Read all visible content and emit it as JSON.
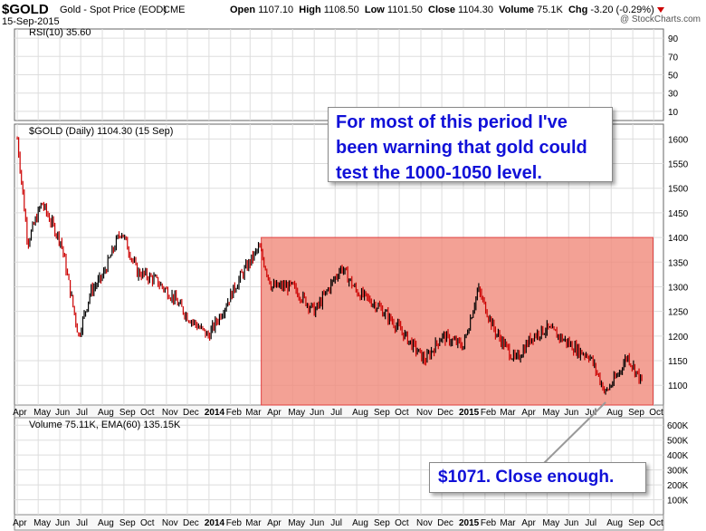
{
  "header": {
    "symbol": "$GOLD",
    "description": "Gold - Spot Price (EOD)",
    "exchange": "CME",
    "date": "15-Sep-2015",
    "brand": "@ StockCharts.com",
    "open_label": "Open",
    "open": "1107.10",
    "high_label": "High",
    "high": "1108.50",
    "low_label": "Low",
    "low": "1101.50",
    "close_label": "Close",
    "close": "1104.30",
    "volume_label": "Volume",
    "volume": "75.1K",
    "chg_label": "Chg",
    "chg": "-3.20 (-0.29%)"
  },
  "panels": {
    "rsi_label": "RSI(10) 35.60",
    "price_label": "$GOLD (Daily) 1104.30 (15 Sep)",
    "volume_label": "Volume 75.11K, EMA(60) 135.15K"
  },
  "annotations": {
    "note1": "For most of this period I've been warning that gold could test the 1000-1050 level.",
    "note2": "$1071. Close enough."
  },
  "colors": {
    "up_bar": "#000000",
    "down_bar": "#cc0000",
    "highlight_fill": "#f08a7a",
    "highlight_stroke": "#e04040",
    "note_text": "#1010d8"
  },
  "chart_data": [
    {
      "type": "line",
      "panel": "rsi",
      "series": [
        {
          "name": "RSI(10)",
          "x": [],
          "y": []
        }
      ],
      "ylim": [
        0,
        100
      ],
      "yticks": [
        10,
        30,
        50,
        70,
        90
      ],
      "current_value": 35.6,
      "grid": true
    },
    {
      "type": "ohlc",
      "panel": "price",
      "title": "$GOLD (Daily) 1104.30 (15 Sep)",
      "ylim": [
        1060,
        1630
      ],
      "yticks": [
        1100,
        1150,
        1200,
        1250,
        1300,
        1350,
        1400,
        1450,
        1500,
        1550,
        1600
      ],
      "xtick_labels": [
        "Apr",
        "May",
        "Jun",
        "Jul",
        "Aug",
        "Sep",
        "Oct",
        "Nov",
        "Dec",
        "2014",
        "Feb",
        "Mar",
        "Apr",
        "May",
        "Jun",
        "Jul",
        "Aug",
        "Sep",
        "Oct",
        "Nov",
        "Dec",
        "2015",
        "Feb",
        "Mar",
        "Apr",
        "May",
        "Jun",
        "Jul",
        "Aug",
        "Sep",
        "Oct"
      ],
      "x": [
        "2013-04-01",
        "2013-04-16",
        "2013-05-06",
        "2013-06-03",
        "2013-06-28",
        "2013-07-15",
        "2013-08-01",
        "2013-08-28",
        "2013-09-20",
        "2013-10-15",
        "2013-11-10",
        "2013-12-01",
        "2013-12-31",
        "2014-01-20",
        "2014-02-15",
        "2014-03-14",
        "2014-04-01",
        "2014-05-01",
        "2014-06-02",
        "2014-07-10",
        "2014-08-01",
        "2014-09-01",
        "2014-10-01",
        "2014-11-07",
        "2014-12-01",
        "2015-01-01",
        "2015-01-22",
        "2015-02-15",
        "2015-03-17",
        "2015-04-10",
        "2015-05-01",
        "2015-05-18",
        "2015-06-15",
        "2015-07-01",
        "2015-07-24",
        "2015-08-10",
        "2015-08-24",
        "2015-09-15"
      ],
      "close": [
        1600,
        1390,
        1470,
        1390,
        1200,
        1290,
        1320,
        1415,
        1330,
        1315,
        1280,
        1240,
        1200,
        1250,
        1320,
        1380,
        1300,
        1300,
        1250,
        1340,
        1290,
        1260,
        1215,
        1150,
        1200,
        1180,
        1295,
        1210,
        1150,
        1200,
        1215,
        1200,
        1170,
        1160,
        1085,
        1120,
        1160,
        1104
      ],
      "highlight_region": {
        "x_start": "2014-03-17",
        "x_end": "2015-09-30",
        "y_low": 1060,
        "y_high": 1400
      },
      "grid": true
    },
    {
      "type": "bar",
      "panel": "volume",
      "series": [
        {
          "name": "Volume",
          "x": [],
          "y": []
        }
      ],
      "ylim": [
        0,
        650000
      ],
      "yticks": [
        100000,
        200000,
        300000,
        400000,
        500000,
        600000
      ],
      "ytick_labels": [
        "100K",
        "200K",
        "300K",
        "400K",
        "500K",
        "600K"
      ],
      "current_volume": 75110,
      "ema60": 135150,
      "grid": true
    }
  ]
}
